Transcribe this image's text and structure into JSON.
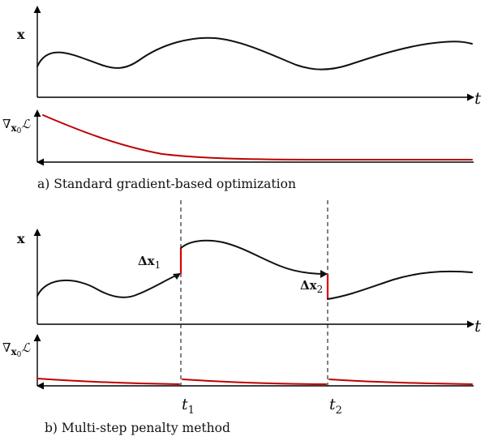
{
  "colors": {
    "state": "#111111",
    "gradient": "#c00000",
    "jump": "#e00000",
    "axis": "#000000"
  },
  "panel_a": {
    "state_label": "x",
    "grad_label_nabla": "∇",
    "grad_label_sub": "x",
    "grad_label_sub0": "0",
    "grad_label_L": "ℒ",
    "time_label": "t",
    "caption": "a)  Standard gradient-based optimization"
  },
  "panel_b": {
    "state_label": "x",
    "grad_label_nabla": "∇",
    "grad_label_sub": "x",
    "grad_label_sub0": "0",
    "grad_label_L": "ℒ",
    "time_label": "t",
    "jump1_label": "Δx",
    "jump1_sub": "1",
    "jump2_label": "Δx",
    "jump2_sub": "2",
    "t1_label": "t",
    "t1_sub": "1",
    "t2_label": "t",
    "t2_sub": "2",
    "caption": "b)  Multi-step penalty method"
  }
}
